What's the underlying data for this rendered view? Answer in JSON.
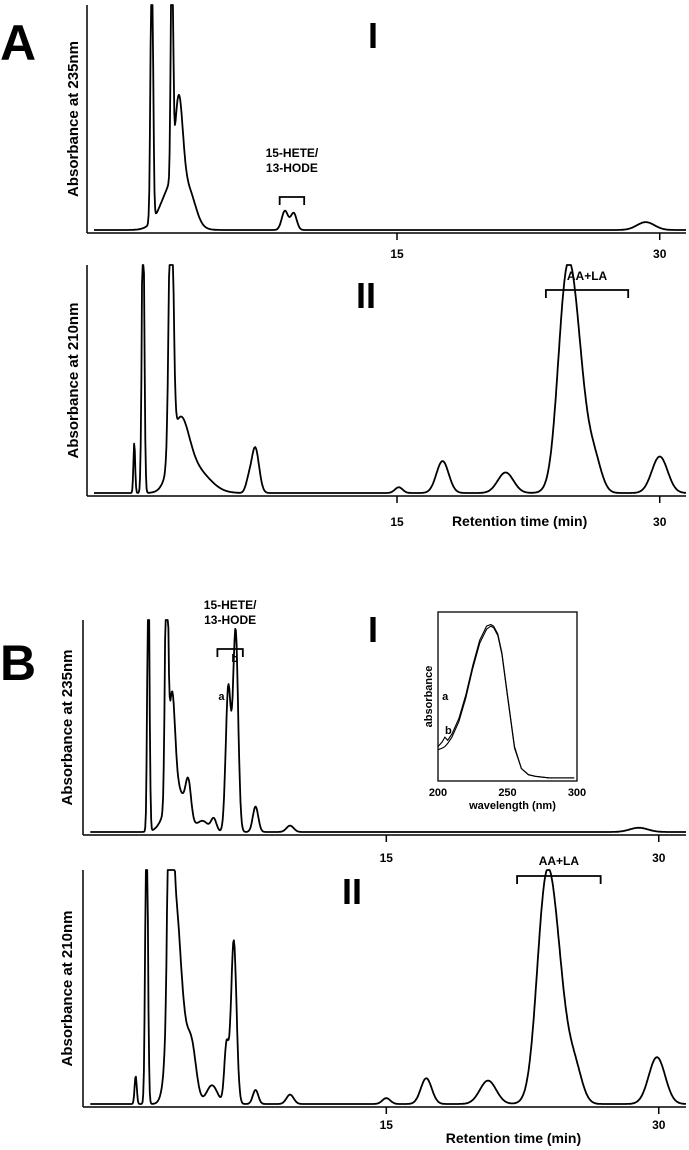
{
  "figure": {
    "panel_A_label": "A",
    "panel_B_label": "B"
  },
  "chart_data": [
    {
      "type": "line",
      "panel": "A",
      "subplot": "I",
      "ylabel": "Absorbance at 235nm",
      "xlabel": "",
      "x_ticks": [
        "15",
        "30"
      ],
      "xlim": [
        -2.7,
        31.5
      ],
      "annotations": [
        {
          "text": [
            "15-HETE/",
            "13-HODE"
          ],
          "x_range": [
            8.3,
            9.7
          ]
        }
      ],
      "peaks": [
        {
          "rt": 1.0,
          "height": 1.3,
          "width": 0.07
        },
        {
          "rt": 2.15,
          "height": 1.3,
          "width": 0.06
        },
        {
          "rt": 2.55,
          "height": 0.38,
          "width": 0.22
        },
        {
          "rt": 2.3,
          "height": 0.22,
          "width": 0.7
        },
        {
          "rt": 3.2,
          "height": 0.08,
          "width": 0.35
        },
        {
          "rt": 8.6,
          "height": 0.085,
          "width": 0.18
        },
        {
          "rt": 9.1,
          "height": 0.075,
          "width": 0.17
        },
        {
          "rt": 29.2,
          "height": 0.035,
          "width": 0.5
        }
      ]
    },
    {
      "type": "line",
      "panel": "A",
      "subplot": "II",
      "ylabel": "Absorbance at 210nm",
      "xlabel": "Retention time (min)",
      "x_ticks": [
        "15",
        "30"
      ],
      "xlim": [
        -2.7,
        31.5
      ],
      "annotations": [
        {
          "text": [
            "AA+LA"
          ],
          "x_range": [
            23.5,
            28.2
          ]
        }
      ],
      "peaks": [
        {
          "rt": 0.0,
          "height": 0.22,
          "width": 0.05
        },
        {
          "rt": 0.5,
          "height": 1.3,
          "width": 0.07
        },
        {
          "rt": 2.1,
          "height": 1.3,
          "width": 0.12
        },
        {
          "rt": 2.6,
          "height": 0.28,
          "width": 0.5
        },
        {
          "rt": 3.5,
          "height": 0.1,
          "width": 0.8
        },
        {
          "rt": 6.9,
          "height": 0.2,
          "width": 0.22
        },
        {
          "rt": 6.5,
          "height": 0.04,
          "width": 0.15
        },
        {
          "rt": 15.1,
          "height": 0.025,
          "width": 0.22
        },
        {
          "rt": 17.6,
          "height": 0.14,
          "width": 0.35
        },
        {
          "rt": 21.2,
          "height": 0.09,
          "width": 0.45
        },
        {
          "rt": 25.0,
          "height": 0.83,
          "width": 0.6
        },
        {
          "rt": 24.5,
          "height": 0.3,
          "width": 0.42
        },
        {
          "rt": 26.3,
          "height": 0.12,
          "width": 0.4
        },
        {
          "rt": 30.0,
          "height": 0.16,
          "width": 0.45
        }
      ]
    },
    {
      "type": "line",
      "panel": "B",
      "subplot": "I",
      "ylabel": "Absorbance at 235nm",
      "xlabel": "",
      "x_ticks": [
        "15",
        "30"
      ],
      "xlim": [
        -1.7,
        31.5
      ],
      "annotations": [
        {
          "text": [
            "15-HETE/",
            "13-HODE"
          ],
          "x_range": [
            5.7,
            7.1
          ]
        }
      ],
      "peak_labels": [
        {
          "text": "a",
          "rt": 6.2
        },
        {
          "text": "b",
          "rt": 6.6
        }
      ],
      "peaks": [
        {
          "rt": 1.9,
          "height": 1.3,
          "width": 0.06
        },
        {
          "rt": 2.9,
          "height": 1.3,
          "width": 0.08
        },
        {
          "rt": 3.2,
          "height": 0.46,
          "width": 0.16
        },
        {
          "rt": 3.4,
          "height": 0.22,
          "width": 0.5
        },
        {
          "rt": 4.1,
          "height": 0.17,
          "width": 0.15
        },
        {
          "rt": 4.9,
          "height": 0.05,
          "width": 0.3
        },
        {
          "rt": 5.5,
          "height": 0.06,
          "width": 0.15
        },
        {
          "rt": 6.3,
          "height": 0.68,
          "width": 0.14
        },
        {
          "rt": 6.7,
          "height": 0.95,
          "width": 0.14
        },
        {
          "rt": 7.8,
          "height": 0.12,
          "width": 0.15
        },
        {
          "rt": 9.7,
          "height": 0.03,
          "width": 0.2
        },
        {
          "rt": 28.9,
          "height": 0.02,
          "width": 0.5
        }
      ]
    },
    {
      "type": "line",
      "panel": "B",
      "subplot": "II",
      "ylabel": "Absorbance at 210nm",
      "xlabel": "Retention time (min)",
      "x_ticks": [
        "15",
        "30"
      ],
      "xlim": [
        -1.7,
        31.5
      ],
      "annotations": [
        {
          "text": [
            "AA+LA"
          ],
          "x_range": [
            22.2,
            26.8
          ]
        }
      ],
      "peaks": [
        {
          "rt": 1.2,
          "height": 0.12,
          "width": 0.06
        },
        {
          "rt": 1.8,
          "height": 1.3,
          "width": 0.07
        },
        {
          "rt": 3.1,
          "height": 1.3,
          "width": 0.12
        },
        {
          "rt": 3.3,
          "height": 0.6,
          "width": 0.3
        },
        {
          "rt": 3.6,
          "height": 0.35,
          "width": 0.4
        },
        {
          "rt": 4.3,
          "height": 0.2,
          "width": 0.25
        },
        {
          "rt": 5.4,
          "height": 0.08,
          "width": 0.3
        },
        {
          "rt": 6.2,
          "height": 0.25,
          "width": 0.12
        },
        {
          "rt": 6.6,
          "height": 0.7,
          "width": 0.15
        },
        {
          "rt": 7.8,
          "height": 0.06,
          "width": 0.15
        },
        {
          "rt": 9.7,
          "height": 0.04,
          "width": 0.2
        },
        {
          "rt": 15.0,
          "height": 0.025,
          "width": 0.22
        },
        {
          "rt": 17.2,
          "height": 0.11,
          "width": 0.3
        },
        {
          "rt": 20.6,
          "height": 0.1,
          "width": 0.45
        },
        {
          "rt": 24.1,
          "height": 0.82,
          "width": 0.6
        },
        {
          "rt": 23.6,
          "height": 0.3,
          "width": 0.42
        },
        {
          "rt": 25.4,
          "height": 0.13,
          "width": 0.4
        },
        {
          "rt": 29.9,
          "height": 0.2,
          "width": 0.45
        }
      ]
    },
    {
      "type": "line",
      "panel": "B",
      "subplot": "inset",
      "xlabel": "wavelength (nm)",
      "ylabel": "absorbance",
      "x_ticks": [
        "200",
        "250",
        "300"
      ],
      "xlim": [
        200,
        300
      ],
      "ylim": [
        0,
        1.08
      ],
      "series": [
        {
          "name": "a",
          "x": [
            200,
            203,
            205,
            207,
            210,
            215,
            220,
            225,
            230,
            235,
            238,
            240,
            243,
            246,
            250,
            255,
            260,
            265,
            270,
            280,
            290,
            298
          ],
          "y": [
            0.22,
            0.25,
            0.28,
            0.26,
            0.3,
            0.4,
            0.55,
            0.74,
            0.9,
            0.99,
            1.0,
            0.99,
            0.94,
            0.82,
            0.55,
            0.22,
            0.08,
            0.04,
            0.03,
            0.02,
            0.02,
            0.02
          ]
        },
        {
          "name": "b",
          "x": [
            200,
            203,
            205,
            207,
            210,
            215,
            220,
            225,
            230,
            235,
            238,
            240,
            243,
            246,
            250,
            255,
            260,
            265,
            270,
            280,
            290,
            298
          ],
          "y": [
            0.2,
            0.21,
            0.22,
            0.24,
            0.28,
            0.38,
            0.53,
            0.72,
            0.88,
            0.97,
            0.99,
            0.98,
            0.93,
            0.81,
            0.54,
            0.21,
            0.08,
            0.04,
            0.03,
            0.02,
            0.02,
            0.02
          ]
        }
      ]
    }
  ]
}
